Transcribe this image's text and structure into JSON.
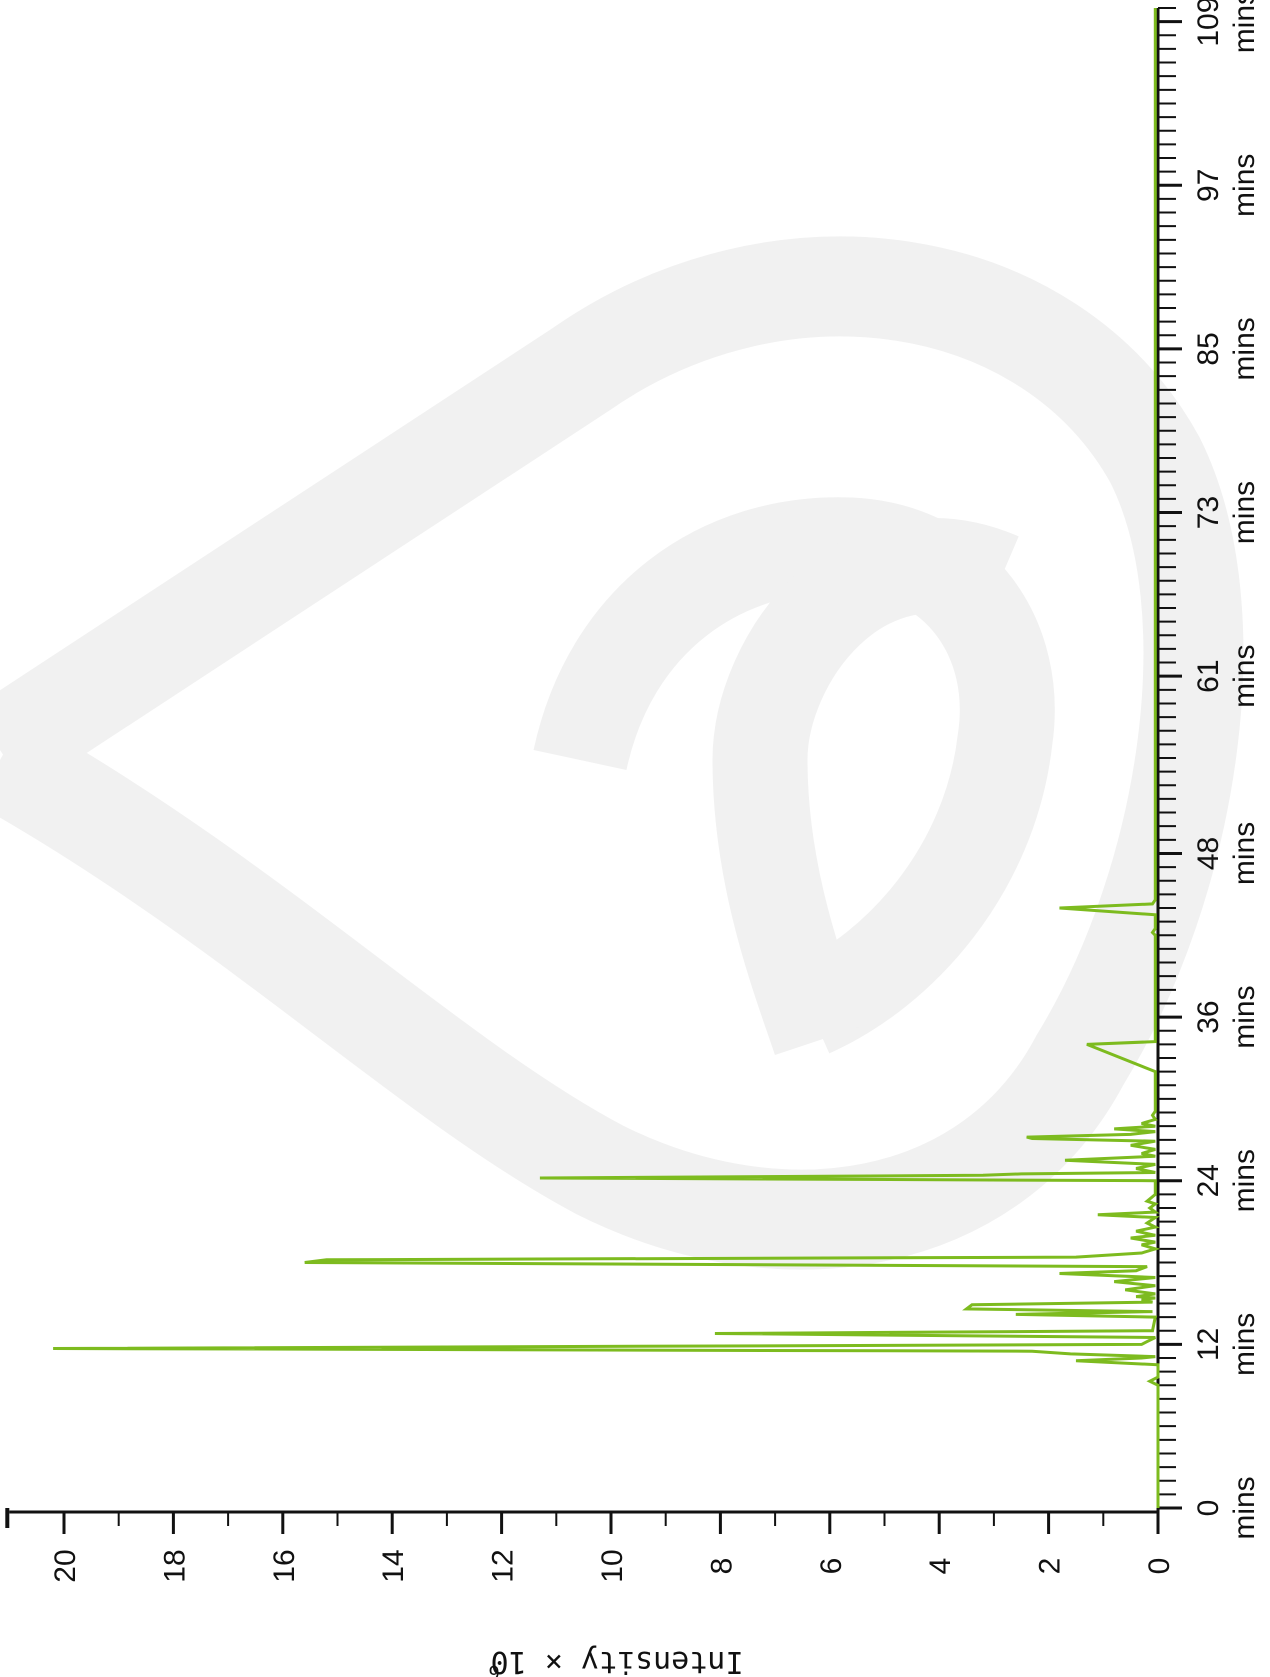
{
  "chart_data": {
    "type": "line",
    "orientation": "rotated-90-clockwise",
    "ylabel": "Intensity × 10",
    "ylabel_superscript": "6",
    "xlim": [
      0,
      110
    ],
    "ylim": [
      0,
      21
    ],
    "x_tick_values": [
      0,
      12,
      24,
      36,
      48,
      61,
      73,
      85,
      97,
      109
    ],
    "x_tick_unit": "mins",
    "y_tick_values": [
      0,
      2,
      4,
      6,
      8,
      10,
      12,
      14,
      16,
      18,
      20
    ],
    "y_tick_labels": [
      "0",
      "2",
      "4",
      "6",
      "8",
      "10",
      "12",
      "14",
      "16",
      "18",
      "20"
    ],
    "grid": false,
    "series": [
      {
        "color": "#7dbb1f",
        "x": [
          0,
          9.0,
          9.3,
          9.6,
          10.5,
          10.8,
          11.0,
          11.1,
          11.3,
          11.5,
          11.7,
          12.0,
          12.2,
          12.5,
          12.8,
          13.0,
          14.0,
          14.2,
          14.4,
          14.6,
          14.9,
          15.1,
          15.3,
          15.4,
          15.5,
          15.7,
          16.0,
          16.3,
          16.6,
          16.9,
          17.2,
          17.4,
          17.7,
          18.0,
          18.2,
          18.4,
          18.7,
          19.0,
          19.3,
          19.5,
          19.8,
          20.0,
          20.3,
          20.6,
          20.9,
          21.3,
          21.5,
          21.7,
          22.0,
          22.3,
          22.5,
          23.0,
          23.5,
          24.0,
          24.2,
          24.4,
          24.5,
          24.6,
          24.9,
          25.2,
          25.5,
          25.8,
          26.0,
          26.3,
          26.6,
          26.9,
          27.1,
          27.2,
          27.4,
          27.6,
          27.8,
          28.0,
          28.2,
          28.5,
          28.8,
          29.1,
          29.3,
          29.6,
          30.0,
          32.0,
          34.0,
          34.2,
          34.4,
          36.0,
          38.0,
          40.0,
          41.0,
          41.5,
          41.8,
          42.0,
          42.2,
          42.5,
          43.0,
          43.5,
          44.0,
          44.3,
          44.6,
          45.0,
          47.0,
          50.0,
          60.0,
          70.0,
          80.0,
          90.0,
          100.0,
          110.0
        ],
        "y": [
          0,
          0,
          0.15,
          0,
          0,
          1.5,
          0.3,
          0.05,
          1.6,
          2.3,
          20.2,
          0.3,
          0.2,
          0.05,
          8.1,
          0.1,
          0.05,
          2.6,
          0.1,
          3.5,
          3.4,
          0.1,
          0.3,
          0.05,
          0.4,
          0.05,
          0.6,
          0.05,
          0.8,
          0.05,
          1.8,
          0.4,
          0.2,
          15.6,
          15.2,
          1.5,
          0.3,
          0.05,
          0.3,
          0.05,
          0.5,
          0.05,
          0.4,
          0.05,
          0.2,
          0.05,
          1.1,
          0.05,
          0.15,
          0.05,
          0.2,
          0.05,
          0.05,
          0.05,
          11.3,
          3.2,
          2.5,
          0.05,
          0.4,
          0.05,
          1.7,
          0.05,
          0.3,
          0.05,
          0.5,
          0.05,
          2.3,
          2.4,
          0.5,
          0.05,
          0.8,
          0.05,
          0.3,
          0.05,
          0.1,
          0.05,
          0.05,
          0.05,
          0.05,
          0.05,
          1.3,
          0.05,
          0.05,
          0.05,
          0.05,
          0.05,
          0.05,
          0.05,
          0.05,
          0.05,
          0.1,
          0.05,
          0.05,
          0.05,
          1.8,
          0.1,
          0.05,
          0.05,
          0.05,
          0.05,
          0.05,
          0.05,
          0.05,
          0.05,
          0.05,
          0.05
        ]
      }
    ]
  }
}
